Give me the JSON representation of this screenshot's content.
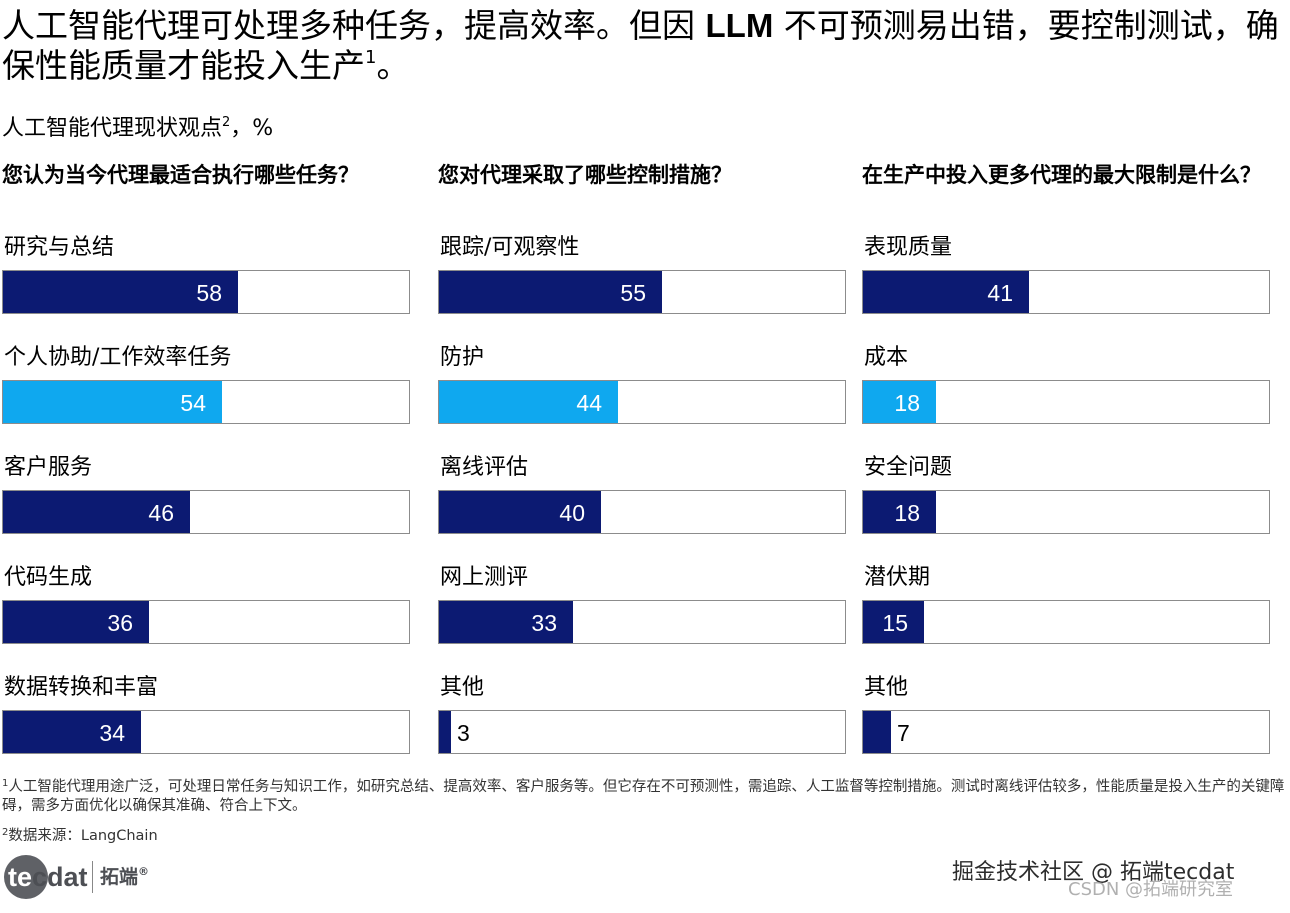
{
  "headline": {
    "part1": "人工智能代理可处理多种任务，提高效率。但因 ",
    "bold": "LLM",
    "part2": " 不可预测易出错，要控制测试，确保性能质量才能投入生产",
    "sup": "1",
    "end": "。"
  },
  "subtitle": {
    "text": "人工智能代理现状观点",
    "sup": "2",
    "unit": "，%"
  },
  "colors": {
    "dark": "#0c1a72",
    "light": "#0fa8ef",
    "frame": "#8c8c8c"
  },
  "chart_data": [
    {
      "type": "bar",
      "title": "您认为当今代理最适合执行哪些任务？",
      "categories": [
        "研究与总结",
        "个人协助/工作效率任务",
        "客户服务",
        "代码生成",
        "数据转换和丰富"
      ],
      "values": [
        58,
        54,
        46,
        36,
        34
      ],
      "highlight": [
        false,
        true,
        false,
        false,
        false
      ],
      "xlim": [
        0,
        100
      ]
    },
    {
      "type": "bar",
      "title": "您对代理采取了哪些控制措施？",
      "categories": [
        "跟踪/可观察性",
        "防护",
        "离线评估",
        "网上测评",
        "其他"
      ],
      "values": [
        55,
        44,
        40,
        33,
        3
      ],
      "highlight": [
        false,
        true,
        false,
        false,
        false
      ],
      "xlim": [
        0,
        100
      ]
    },
    {
      "type": "bar",
      "title": "在生产中投入更多代理的最大限制是什么？",
      "categories": [
        "表现质量",
        "成本",
        "安全问题",
        "潜伏期",
        "其他"
      ],
      "values": [
        41,
        18,
        18,
        15,
        7
      ],
      "highlight": [
        false,
        true,
        false,
        false,
        false
      ],
      "xlim": [
        0,
        100
      ]
    }
  ],
  "footnote": {
    "sup": "1",
    "text": "人工智能代理用途广泛，可处理日常任务与知识工作，如研究总结、提高效率、客户服务等。但它存在不可预测性，需追踪、人工监督等控制措施。测试时离线评估较多，性能质量是投入生产的关键障碍，需多方面优化以确保其准确、符合上下文。"
  },
  "source": {
    "sup": "2",
    "text": "数据来源：LangChain"
  },
  "logo": {
    "brand_prefix": "te",
    "brand_suffix": "cdat",
    "cn": "拓端",
    "reg": "®"
  },
  "watermark": {
    "line1": "掘金技术社区 @ 拓端tecdat",
    "line2": "CSDN @拓端研究室"
  }
}
